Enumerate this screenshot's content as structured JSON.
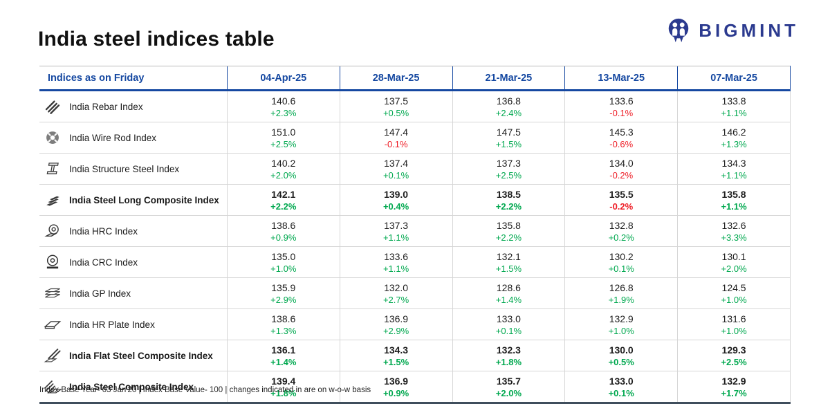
{
  "page": {
    "title": "India steel indices table",
    "footnote": "Index Base Year- 03 Jan'20 | Index Base Value- 100 | changes indicated in are on w-o-w basis"
  },
  "logo": {
    "text": "BIGMINT"
  },
  "colors": {
    "header_blue": "#1548a1",
    "logo_navy": "#2b3a8f",
    "positive_green": "#00a84f",
    "negative_red": "#ee1c25",
    "table_bottom_border": "#3f4e5c"
  },
  "chart_data": {
    "type": "table",
    "title": "India steel indices table",
    "columns": [
      "Indices as on Friday",
      "04-Apr-25",
      "28-Mar-25",
      "21-Mar-25",
      "13-Mar-25",
      "07-Mar-25"
    ],
    "rows": [
      {
        "label": "India Rebar Index",
        "icon": "rebar-icon",
        "bold": false,
        "values": [
          "140.6",
          "137.5",
          "136.8",
          "133.6",
          "133.8"
        ],
        "changes": [
          "+2.3%",
          "+0.5%",
          "+2.4%",
          "-0.1%",
          "+1.1%"
        ]
      },
      {
        "label": "India Wire Rod Index",
        "icon": "wire-rod-icon",
        "bold": false,
        "values": [
          "151.0",
          "147.4",
          "147.5",
          "145.3",
          "146.2"
        ],
        "changes": [
          "+2.5%",
          "-0.1%",
          "+1.5%",
          "-0.6%",
          "+1.3%"
        ]
      },
      {
        "label": "India Structure Steel Index",
        "icon": "structure-steel-icon",
        "bold": false,
        "values": [
          "140.2",
          "137.4",
          "137.3",
          "134.0",
          "134.3"
        ],
        "changes": [
          "+2.0%",
          "+0.1%",
          "+2.5%",
          "-0.2%",
          "+1.1%"
        ]
      },
      {
        "label": "India Steel Long Composite Index",
        "icon": "steel-long-composite-icon",
        "bold": true,
        "values": [
          "142.1",
          "139.0",
          "138.5",
          "135.5",
          "135.8"
        ],
        "changes": [
          "+2.2%",
          "+0.4%",
          "+2.2%",
          "-0.2%",
          "+1.1%"
        ]
      },
      {
        "label": "India HRC Index",
        "icon": "hrc-coil-icon",
        "bold": false,
        "values": [
          "138.6",
          "137.3",
          "135.8",
          "132.8",
          "132.6"
        ],
        "changes": [
          "+0.9%",
          "+1.1%",
          "+2.2%",
          "+0.2%",
          "+3.3%"
        ]
      },
      {
        "label": "India CRC Index",
        "icon": "crc-coil-icon",
        "bold": false,
        "values": [
          "135.0",
          "133.6",
          "132.1",
          "130.2",
          "130.1"
        ],
        "changes": [
          "+1.0%",
          "+1.1%",
          "+1.5%",
          "+0.1%",
          "+2.0%"
        ]
      },
      {
        "label": "India GP Index",
        "icon": "gp-sheets-icon",
        "bold": false,
        "values": [
          "135.9",
          "132.0",
          "128.6",
          "126.8",
          "124.5"
        ],
        "changes": [
          "+2.9%",
          "+2.7%",
          "+1.4%",
          "+1.9%",
          "+1.0%"
        ]
      },
      {
        "label": "India HR Plate Index",
        "icon": "hr-plate-icon",
        "bold": false,
        "values": [
          "138.6",
          "136.9",
          "133.0",
          "132.9",
          "131.6"
        ],
        "changes": [
          "+1.3%",
          "+2.9%",
          "+0.1%",
          "+1.0%",
          "+1.0%"
        ]
      },
      {
        "label": "India Flat Steel Composite Index",
        "icon": "flat-steel-composite-icon",
        "bold": true,
        "values": [
          "136.1",
          "134.3",
          "132.3",
          "130.0",
          "129.3"
        ],
        "changes": [
          "+1.4%",
          "+1.5%",
          "+1.8%",
          "+0.5%",
          "+2.5%"
        ]
      },
      {
        "label": "India Steel Composite Index",
        "icon": "steel-composite-icon",
        "bold": true,
        "values": [
          "139.4",
          "136.9",
          "135.7",
          "133.0",
          "132.9"
        ],
        "changes": [
          "+1.8%",
          "+0.9%",
          "+2.0%",
          "+0.1%",
          "+1.7%"
        ]
      }
    ],
    "footnote": "Index Base Year- 03 Jan'20 | Index Base Value- 100 | changes indicated in are on w-o-w basis"
  }
}
